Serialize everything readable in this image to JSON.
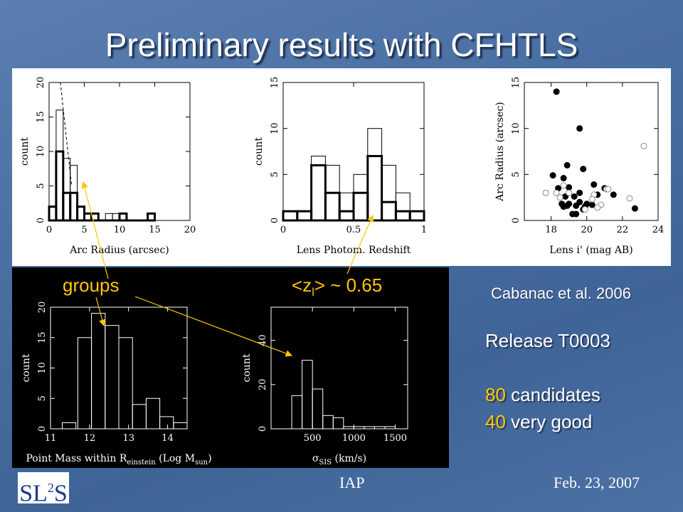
{
  "slide": {
    "title": "Preliminary results with CFHTLS",
    "groups_label": "groups",
    "zl_label": "<z",
    "zl_sub": "l",
    "zl_value": "> ~ 0.65",
    "citation": "Cabanac et al. 2006",
    "release": "Release T0003",
    "candidates_num": "80",
    "candidates_text": " candidates",
    "verygood_num": "40",
    "verygood_text": " very good",
    "logo_main": "SL",
    "logo_sup": "2",
    "logo_end": "S",
    "footer_center": "IAP",
    "footer_right": "Feb. 23,  2007"
  },
  "colors": {
    "accent": "#ffc600",
    "background": "#4a6fa3",
    "text": "#ffffff"
  },
  "chart_data": [
    {
      "type": "bar",
      "xlabel": "Arc Radius (arcsec)",
      "ylabel": "count",
      "xlim": [
        0,
        20
      ],
      "ylim": [
        0,
        20
      ],
      "xticks": [
        "0",
        "5",
        "10",
        "15",
        "20"
      ],
      "yticks": [
        "0",
        "5",
        "10",
        "15",
        "20"
      ],
      "bin_width": 1,
      "series": [
        {
          "style": "thin",
          "bins": [
            [
              1,
              16
            ],
            [
              2,
              9
            ],
            [
              3,
              8
            ],
            [
              4,
              2
            ],
            [
              5,
              1
            ],
            [
              6,
              1
            ],
            [
              8,
              1
            ],
            [
              9,
              1
            ],
            [
              10,
              1
            ],
            [
              14,
              1
            ]
          ]
        },
        {
          "style": "thick",
          "bins": [
            [
              0,
              2
            ],
            [
              1,
              10
            ],
            [
              2,
              4
            ],
            [
              3,
              4
            ],
            [
              4,
              2
            ],
            [
              5,
              1
            ],
            [
              6,
              1
            ],
            [
              7,
              0
            ],
            [
              8,
              0
            ],
            [
              9,
              0
            ],
            [
              10,
              1
            ],
            [
              11,
              0
            ],
            [
              12,
              0
            ],
            [
              13,
              0
            ],
            [
              14,
              1
            ]
          ]
        }
      ],
      "dashed_line": [
        [
          1.6,
          20
        ],
        [
          3.2,
          5
        ]
      ]
    },
    {
      "type": "bar",
      "xlabel": "Lens Photom. Redshift",
      "ylabel": "count",
      "xlim": [
        0,
        1
      ],
      "ylim": [
        0,
        15
      ],
      "xticks": [
        "0",
        "0.5",
        "1"
      ],
      "yticks": [
        "0",
        "5",
        "10",
        "15"
      ],
      "bin_width": 0.1,
      "series": [
        {
          "style": "thin",
          "bins": [
            [
              0,
              1
            ],
            [
              0.1,
              1
            ],
            [
              0.2,
              7
            ],
            [
              0.3,
              6
            ],
            [
              0.4,
              3
            ],
            [
              0.5,
              5
            ],
            [
              0.6,
              10
            ],
            [
              0.7,
              6
            ],
            [
              0.8,
              3
            ],
            [
              0.9,
              1
            ]
          ]
        },
        {
          "style": "thick",
          "bins": [
            [
              0,
              1
            ],
            [
              0.1,
              1
            ],
            [
              0.2,
              6
            ],
            [
              0.3,
              3
            ],
            [
              0.4,
              1
            ],
            [
              0.5,
              3
            ],
            [
              0.6,
              7
            ],
            [
              0.7,
              2
            ],
            [
              0.8,
              1
            ],
            [
              0.9,
              1
            ]
          ]
        }
      ]
    },
    {
      "type": "scatter",
      "xlabel": "Lens i' (mag AB)",
      "ylabel": "Arc Radius (arcsec)",
      "xlim": [
        16.5,
        24
      ],
      "ylim": [
        0,
        15
      ],
      "xticks": [
        "18",
        "20",
        "22",
        "24"
      ],
      "yticks": [
        "0",
        "5",
        "10",
        "15"
      ],
      "series": [
        {
          "style": "filled",
          "points": [
            [
              18.3,
              14
            ],
            [
              19.6,
              10
            ],
            [
              18.9,
              6
            ],
            [
              19.8,
              5.6
            ],
            [
              18.1,
              4.9
            ],
            [
              18.7,
              4.6
            ],
            [
              21.0,
              3.5
            ],
            [
              20.4,
              3.9
            ],
            [
              18.4,
              3.5
            ],
            [
              19.0,
              3.6
            ],
            [
              20.6,
              2.8
            ],
            [
              21.5,
              2.8
            ],
            [
              19.3,
              2.6
            ],
            [
              18.8,
              2.6
            ],
            [
              19.6,
              3.0
            ],
            [
              18.6,
              1.8
            ],
            [
              19.0,
              1.8
            ],
            [
              18.7,
              1.5
            ],
            [
              19.4,
              1.6
            ],
            [
              19.9,
              1.5
            ],
            [
              20.0,
              1.8
            ],
            [
              20.3,
              1.7
            ],
            [
              19.6,
              2.0
            ],
            [
              19.8,
              1.2
            ],
            [
              19.4,
              0.7
            ],
            [
              19.2,
              0.7
            ],
            [
              22.7,
              1.3
            ],
            [
              18.9,
              1.6
            ]
          ]
        },
        {
          "style": "open",
          "points": [
            [
              23.2,
              8.1
            ],
            [
              17.7,
              3.0
            ],
            [
              18.3,
              3.0
            ],
            [
              19.0,
              3.0
            ],
            [
              18.5,
              2.5
            ],
            [
              20.4,
              2.8
            ],
            [
              21.1,
              3.4
            ],
            [
              22.4,
              2.4
            ],
            [
              20.8,
              1.7
            ],
            [
              20.6,
              1.4
            ],
            [
              19.9,
              1.2
            ],
            [
              20.3,
              2.3
            ],
            [
              21.2,
              3.4
            ],
            [
              18.7,
              3.8
            ]
          ]
        }
      ]
    },
    {
      "type": "bar",
      "xlabel": "Point Mass within R",
      "xlabel_sub": "einstein",
      "xlabel_rest": " (Log M",
      "xlabel_sub2": "sun",
      "xlabel_end": ")",
      "ylabel": "count",
      "xlim": [
        11,
        14.5
      ],
      "ylim": [
        0,
        20
      ],
      "xticks": [
        "11",
        "12",
        "13",
        "14"
      ],
      "yticks": [
        "0",
        "5",
        "10",
        "15",
        "20"
      ],
      "bin_width": 0.35,
      "series": [
        {
          "style": "thin",
          "bins": [
            [
              11.3,
              1
            ],
            [
              11.7,
              15
            ],
            [
              12.05,
              19
            ],
            [
              12.4,
              17
            ],
            [
              12.75,
              15
            ],
            [
              13.1,
              4
            ],
            [
              13.45,
              5
            ],
            [
              13.8,
              2
            ],
            [
              14.15,
              1
            ]
          ]
        }
      ]
    },
    {
      "type": "bar",
      "xlabel": "σ",
      "xlabel_sub": "SIS",
      "xlabel_rest": " (km/s)",
      "ylabel": "count",
      "xlim": [
        0,
        1650
      ],
      "ylim": [
        0,
        55
      ],
      "xticks": [
        "500",
        "1000",
        "1500"
      ],
      "yticks": [
        "0",
        "20",
        "40"
      ],
      "bin_width": 125,
      "series": [
        {
          "style": "thin",
          "bins": [
            [
              250,
              15
            ],
            [
              375,
              31
            ],
            [
              500,
              18
            ],
            [
              625,
              6
            ],
            [
              750,
              5
            ],
            [
              875,
              1
            ],
            [
              1000,
              1
            ],
            [
              1125,
              1
            ],
            [
              1250,
              1
            ],
            [
              1375,
              1
            ]
          ]
        }
      ]
    }
  ]
}
